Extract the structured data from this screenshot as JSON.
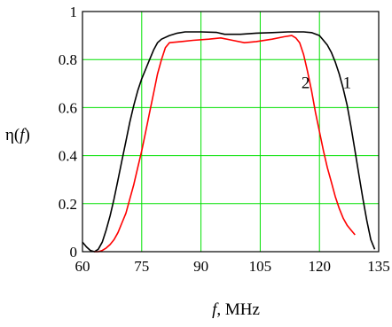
{
  "chart_data": {
    "type": "line",
    "xlabel": {
      "main": "f",
      "suffix": ", MHz"
    },
    "ylabel": {
      "main": "η(",
      "italic": "f",
      "close": ")"
    },
    "xlim": [
      60,
      135
    ],
    "ylim": [
      0,
      1
    ],
    "x_ticks": [
      60,
      75,
      90,
      105,
      120,
      135
    ],
    "y_ticks": [
      0,
      0.2,
      0.4,
      0.6,
      0.8,
      1
    ],
    "x_tick_labels": [
      "60",
      "75",
      "90",
      "105",
      "120",
      "135"
    ],
    "y_tick_labels": [
      "0",
      "0.2",
      "0.4",
      "0.6",
      "0.8",
      "1"
    ],
    "grid": true,
    "grid_color": "#00e000",
    "series": [
      {
        "name": "1",
        "color": "#000000",
        "label_at": [
          127,
          0.68
        ],
        "points": [
          [
            60,
            0.04
          ],
          [
            61,
            0.02
          ],
          [
            62,
            0.005
          ],
          [
            63,
            0.0
          ],
          [
            64,
            0.01
          ],
          [
            65,
            0.04
          ],
          [
            66,
            0.09
          ],
          [
            67,
            0.15
          ],
          [
            68,
            0.22
          ],
          [
            69,
            0.3
          ],
          [
            70,
            0.38
          ],
          [
            71,
            0.46
          ],
          [
            72,
            0.54
          ],
          [
            73,
            0.61
          ],
          [
            74,
            0.67
          ],
          [
            75,
            0.72
          ],
          [
            76,
            0.76
          ],
          [
            77,
            0.8
          ],
          [
            78,
            0.84
          ],
          [
            79,
            0.87
          ],
          [
            80,
            0.885
          ],
          [
            82,
            0.9
          ],
          [
            84,
            0.91
          ],
          [
            86,
            0.915
          ],
          [
            90,
            0.915
          ],
          [
            94,
            0.913
          ],
          [
            96,
            0.905
          ],
          [
            100,
            0.905
          ],
          [
            104,
            0.91
          ],
          [
            108,
            0.912
          ],
          [
            112,
            0.915
          ],
          [
            116,
            0.915
          ],
          [
            118,
            0.912
          ],
          [
            120,
            0.9
          ],
          [
            121,
            0.88
          ],
          [
            122,
            0.86
          ],
          [
            123,
            0.83
          ],
          [
            124,
            0.79
          ],
          [
            125,
            0.74
          ],
          [
            126,
            0.68
          ],
          [
            127,
            0.61
          ],
          [
            128,
            0.52
          ],
          [
            129,
            0.42
          ],
          [
            130,
            0.32
          ],
          [
            131,
            0.22
          ],
          [
            132,
            0.13
          ],
          [
            133,
            0.05
          ],
          [
            134,
            0.01
          ]
        ]
      },
      {
        "name": "2",
        "color": "#ff0000",
        "label_at": [
          116.5,
          0.68
        ],
        "points": [
          [
            63,
            0.0
          ],
          [
            64,
            0.0
          ],
          [
            65,
            0.005
          ],
          [
            66,
            0.015
          ],
          [
            67,
            0.03
          ],
          [
            68,
            0.05
          ],
          [
            69,
            0.08
          ],
          [
            70,
            0.12
          ],
          [
            71,
            0.16
          ],
          [
            72,
            0.22
          ],
          [
            73,
            0.28
          ],
          [
            74,
            0.35
          ],
          [
            75,
            0.42
          ],
          [
            76,
            0.5
          ],
          [
            77,
            0.58
          ],
          [
            78,
            0.66
          ],
          [
            79,
            0.74
          ],
          [
            80,
            0.8
          ],
          [
            81,
            0.85
          ],
          [
            82,
            0.87
          ],
          [
            85,
            0.875
          ],
          [
            88,
            0.88
          ],
          [
            92,
            0.885
          ],
          [
            95,
            0.89
          ],
          [
            98,
            0.88
          ],
          [
            101,
            0.87
          ],
          [
            104,
            0.875
          ],
          [
            108,
            0.885
          ],
          [
            111,
            0.895
          ],
          [
            113,
            0.9
          ],
          [
            114,
            0.89
          ],
          [
            115,
            0.87
          ],
          [
            116,
            0.82
          ],
          [
            117,
            0.75
          ],
          [
            118,
            0.67
          ],
          [
            119,
            0.58
          ],
          [
            120,
            0.5
          ],
          [
            121,
            0.42
          ],
          [
            122,
            0.35
          ],
          [
            123,
            0.29
          ],
          [
            124,
            0.23
          ],
          [
            125,
            0.18
          ],
          [
            126,
            0.14
          ],
          [
            127,
            0.11
          ],
          [
            128,
            0.09
          ],
          [
            129,
            0.07
          ]
        ]
      }
    ]
  }
}
